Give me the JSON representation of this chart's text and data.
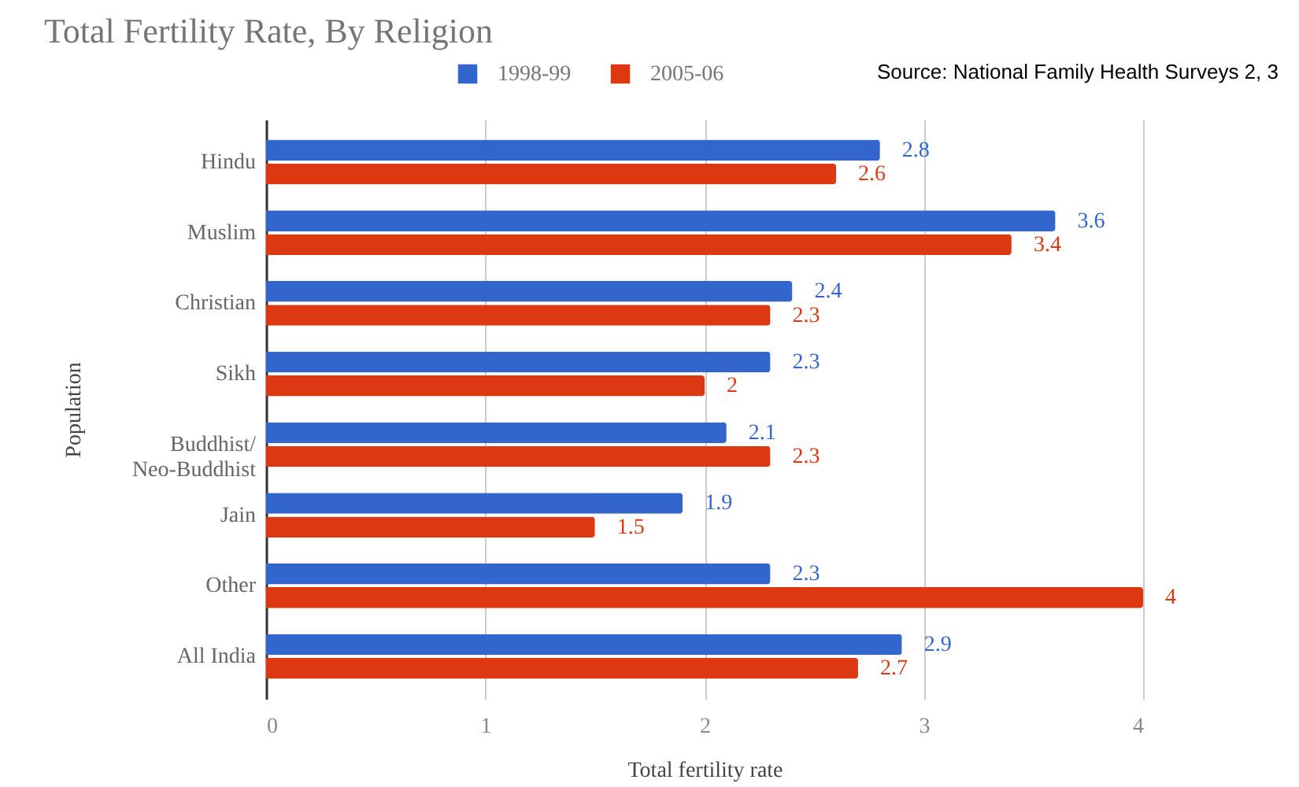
{
  "chart_data": {
    "type": "bar",
    "orientation": "horizontal",
    "title": "Total Fertility Rate, By Religion",
    "xlabel": "Total fertility rate",
    "ylabel": "Population",
    "annotations": [
      "Source: National Family Health Surveys 2, 3"
    ],
    "categories": [
      "Hindu",
      "Muslim",
      "Christian",
      "Sikh",
      "Buddhist/\nNeo-Buddhist",
      "Jain",
      "Other",
      "All India"
    ],
    "series": [
      {
        "name": "1998-99",
        "color": "#3366cc",
        "values": [
          2.8,
          3.6,
          2.4,
          2.3,
          2.1,
          1.9,
          2.3,
          2.9
        ]
      },
      {
        "name": "2005-06",
        "color": "#dc3912",
        "values": [
          2.6,
          3.4,
          2.3,
          2,
          2.3,
          1.5,
          4,
          2.7
        ]
      }
    ],
    "xlim": [
      0,
      4
    ],
    "xticks": [
      0,
      1,
      2,
      3,
      4
    ],
    "grid": "x",
    "legend": "top",
    "data_labels": true
  }
}
